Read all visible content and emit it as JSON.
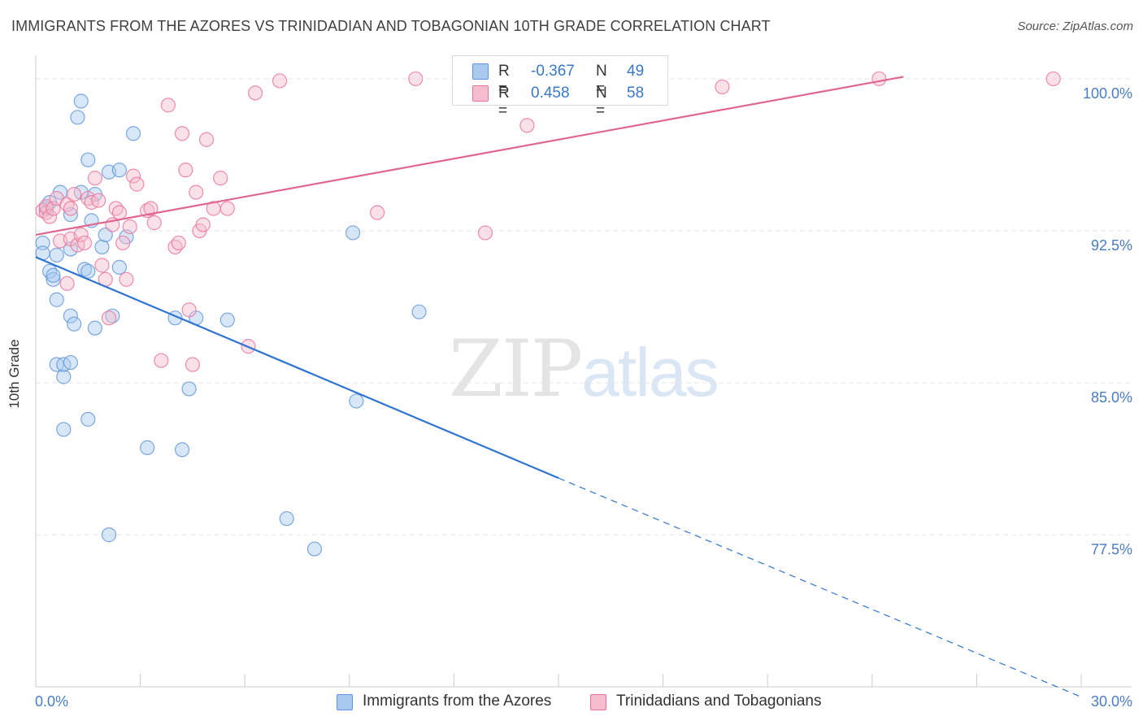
{
  "chart_data": {
    "type": "scatter",
    "title": "IMMIGRANTS FROM THE AZORES VS TRINIDADIAN AND TOBAGONIAN 10TH GRADE CORRELATION CHART",
    "source": "Source: ZipAtlas.com",
    "ylabel": "10th Grade",
    "xlabel": "",
    "xlim": [
      0,
      30
    ],
    "ylim": [
      70.0,
      100.7
    ],
    "x_tick_labels": [
      "0.0%",
      "30.0%"
    ],
    "y_ticks": [
      100.0,
      92.5,
      85.0,
      77.5
    ],
    "y_tick_labels": [
      "100.0%",
      "92.5%",
      "85.0%",
      "77.5%"
    ],
    "watermark": {
      "main": "ZIP",
      "sub": "atlas"
    },
    "legend": [
      {
        "r_label": "R =",
        "r_value": "-0.367",
        "n_label": "N =",
        "n_value": "49"
      },
      {
        "r_label": "R =",
        "r_value": "0.458",
        "n_label": "N =",
        "n_value": "58"
      }
    ],
    "series": [
      {
        "name": "Immigrants from the Azores",
        "color": "#5b93d8",
        "fill": "#a9c9ef",
        "trend": {
          "x0": 0,
          "y0": 91.2,
          "x1": 15.0,
          "y1": 80.3,
          "dash_to_x": 30.0,
          "dash_to_y": 69.5
        },
        "points": [
          [
            0.2,
            91.9
          ],
          [
            0.2,
            91.4
          ],
          [
            0.3,
            93.6
          ],
          [
            0.4,
            90.5
          ],
          [
            0.4,
            93.9
          ],
          [
            0.5,
            90.1
          ],
          [
            0.5,
            90.3
          ],
          [
            0.6,
            89.1
          ],
          [
            0.6,
            85.9
          ],
          [
            0.6,
            91.3
          ],
          [
            0.7,
            94.4
          ],
          [
            0.8,
            85.3
          ],
          [
            0.8,
            85.9
          ],
          [
            0.8,
            82.7
          ],
          [
            1.0,
            91.6
          ],
          [
            1.0,
            93.3
          ],
          [
            1.0,
            86.0
          ],
          [
            1.0,
            88.3
          ],
          [
            1.1,
            87.9
          ],
          [
            1.2,
            98.1
          ],
          [
            1.3,
            98.9
          ],
          [
            1.3,
            94.4
          ],
          [
            1.4,
            90.6
          ],
          [
            1.5,
            96.0
          ],
          [
            1.5,
            83.2
          ],
          [
            1.5,
            90.5
          ],
          [
            1.6,
            93.0
          ],
          [
            1.7,
            94.3
          ],
          [
            1.7,
            87.7
          ],
          [
            1.9,
            91.7
          ],
          [
            2.0,
            92.3
          ],
          [
            2.1,
            95.4
          ],
          [
            2.1,
            77.5
          ],
          [
            2.2,
            88.3
          ],
          [
            2.4,
            95.5
          ],
          [
            2.4,
            90.7
          ],
          [
            2.6,
            92.2
          ],
          [
            2.8,
            97.3
          ],
          [
            3.2,
            81.8
          ],
          [
            4.0,
            88.2
          ],
          [
            4.2,
            81.7
          ],
          [
            4.4,
            84.7
          ],
          [
            4.6,
            88.2
          ],
          [
            5.5,
            88.1
          ],
          [
            7.2,
            78.3
          ],
          [
            8.0,
            76.8
          ],
          [
            9.1,
            92.4
          ],
          [
            9.2,
            84.1
          ],
          [
            11.0,
            88.5
          ]
        ]
      },
      {
        "name": "Trinidadians and Tobagonians",
        "color": "#e8729a",
        "fill": "#f5bccd",
        "trend": {
          "x0": 0,
          "y0": 92.3,
          "x1": 24.9,
          "y1": 100.1
        },
        "points": [
          [
            0.2,
            93.5
          ],
          [
            0.3,
            93.4
          ],
          [
            0.3,
            93.7
          ],
          [
            0.4,
            93.2
          ],
          [
            0.5,
            93.6
          ],
          [
            0.6,
            94.1
          ],
          [
            0.7,
            92.0
          ],
          [
            0.9,
            93.8
          ],
          [
            0.9,
            89.9
          ],
          [
            1.0,
            93.6
          ],
          [
            1.0,
            92.1
          ],
          [
            1.1,
            94.3
          ],
          [
            1.2,
            91.8
          ],
          [
            1.3,
            92.3
          ],
          [
            1.4,
            91.9
          ],
          [
            1.5,
            94.1
          ],
          [
            1.6,
            93.9
          ],
          [
            1.7,
            95.1
          ],
          [
            1.8,
            94.0
          ],
          [
            1.9,
            90.8
          ],
          [
            2.0,
            90.1
          ],
          [
            2.1,
            88.2
          ],
          [
            2.2,
            92.8
          ],
          [
            2.3,
            93.6
          ],
          [
            2.4,
            93.4
          ],
          [
            2.5,
            91.9
          ],
          [
            2.6,
            90.1
          ],
          [
            2.7,
            92.7
          ],
          [
            2.8,
            95.2
          ],
          [
            2.9,
            94.8
          ],
          [
            3.2,
            93.5
          ],
          [
            3.3,
            93.6
          ],
          [
            3.4,
            92.9
          ],
          [
            3.6,
            86.1
          ],
          [
            3.8,
            98.7
          ],
          [
            4.0,
            91.7
          ],
          [
            4.1,
            91.9
          ],
          [
            4.2,
            97.3
          ],
          [
            4.3,
            95.5
          ],
          [
            4.4,
            88.6
          ],
          [
            4.5,
            85.9
          ],
          [
            4.6,
            94.4
          ],
          [
            4.7,
            92.5
          ],
          [
            4.8,
            92.8
          ],
          [
            4.9,
            97.0
          ],
          [
            5.1,
            93.6
          ],
          [
            5.3,
            95.1
          ],
          [
            5.5,
            93.6
          ],
          [
            6.1,
            86.8
          ],
          [
            6.3,
            99.3
          ],
          [
            7.0,
            99.9
          ],
          [
            9.8,
            93.4
          ],
          [
            10.9,
            100.0
          ],
          [
            12.9,
            92.4
          ],
          [
            14.1,
            97.7
          ],
          [
            19.7,
            99.6
          ],
          [
            24.2,
            100.0
          ],
          [
            29.2,
            100.0
          ]
        ]
      }
    ]
  }
}
